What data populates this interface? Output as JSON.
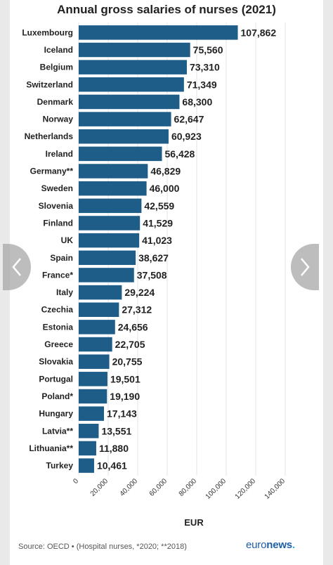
{
  "chart_data": {
    "type": "bar",
    "orientation": "horizontal",
    "title": "Annual gross salaries of nurses (2021)",
    "xlabel": "EUR",
    "ylabel": "",
    "xlim": [
      0,
      140000
    ],
    "ticks": [
      0,
      20000,
      40000,
      60000,
      80000,
      100000,
      120000,
      140000
    ],
    "tick_labels": [
      "0",
      "20,000",
      "40,000",
      "60,000",
      "80,000",
      "100,000",
      "120,000",
      "140,000"
    ],
    "categories": [
      "Luxembourg",
      "Iceland",
      "Belgium",
      "Switzerland",
      "Denmark",
      "Norway",
      "Netherlands",
      "Ireland",
      "Germany**",
      "Sweden",
      "Slovenia",
      "Finland",
      "UK",
      "Spain",
      "France*",
      "Italy",
      "Czechia",
      "Estonia",
      "Greece",
      "Slovakia",
      "Portugal",
      "Poland*",
      "Hungary",
      "Latvia**",
      "Lithuania**",
      "Turkey"
    ],
    "values": [
      107862,
      75560,
      73310,
      71349,
      68300,
      62647,
      60923,
      56428,
      46829,
      46000,
      42559,
      41529,
      41023,
      38627,
      37508,
      29224,
      27312,
      24656,
      22705,
      20755,
      19501,
      19190,
      17143,
      13551,
      11880,
      10461
    ],
    "value_labels": [
      "107,862",
      "75,560",
      "73,310",
      "71,349",
      "68,300",
      "62,647",
      "60,923",
      "56,428",
      "46,829",
      "46,000",
      "42,559",
      "41,529",
      "41,023",
      "38,627",
      "37,508",
      "29,224",
      "27,312",
      "24,656",
      "22,705",
      "20,755",
      "19,501",
      "19,190",
      "17,143",
      "13,551",
      "11,880",
      "10,461"
    ],
    "bar_color": "#1f5d89",
    "grid": true,
    "legend": "none"
  },
  "footer": {
    "source": "Source: OECD • (Hospital nurses, *2020; **2018)",
    "logo_main": "euro",
    "logo_bold": "news",
    "logo_dot": "."
  },
  "navigation": {
    "prev_icon": "chevron-left-icon",
    "next_icon": "chevron-right-icon"
  }
}
